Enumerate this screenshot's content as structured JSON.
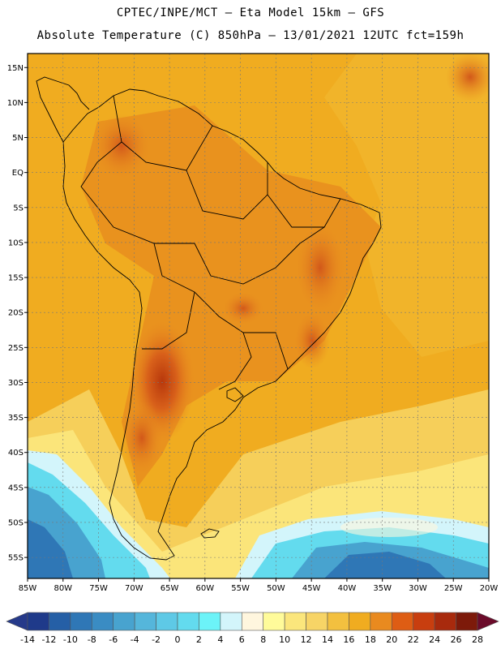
{
  "header": {
    "line1": "CPTEC/INPE/MCT –  Eta Model 15km – GFS",
    "line2": "Absolute Temperature (C) 850hPa – 13/01/2021 12UTC fct=159h"
  },
  "map": {
    "lon_range": [
      -85,
      -20
    ],
    "lat_range": [
      -58,
      17
    ],
    "lat_ticks": [
      {
        "value": 15,
        "label": "15N"
      },
      {
        "value": 10,
        "label": "10N"
      },
      {
        "value": 5,
        "label": "5N"
      },
      {
        "value": 0,
        "label": "EQ"
      },
      {
        "value": -5,
        "label": "5S"
      },
      {
        "value": -10,
        "label": "10S"
      },
      {
        "value": -15,
        "label": "15S"
      },
      {
        "value": -20,
        "label": "20S"
      },
      {
        "value": -25,
        "label": "25S"
      },
      {
        "value": -30,
        "label": "30S"
      },
      {
        "value": -35,
        "label": "35S"
      },
      {
        "value": -40,
        "label": "40S"
      },
      {
        "value": -45,
        "label": "45S"
      },
      {
        "value": -50,
        "label": "50S"
      },
      {
        "value": -55,
        "label": "55S"
      }
    ],
    "lon_ticks": [
      {
        "value": -85,
        "label": "85W"
      },
      {
        "value": -80,
        "label": "80W"
      },
      {
        "value": -75,
        "label": "75W"
      },
      {
        "value": -70,
        "label": "70W"
      },
      {
        "value": -65,
        "label": "65W"
      },
      {
        "value": -60,
        "label": "60W"
      },
      {
        "value": -55,
        "label": "55W"
      },
      {
        "value": -50,
        "label": "50W"
      },
      {
        "value": -45,
        "label": "45W"
      },
      {
        "value": -40,
        "label": "40W"
      },
      {
        "value": -35,
        "label": "35W"
      },
      {
        "value": -30,
        "label": "30W"
      },
      {
        "value": -25,
        "label": "25W"
      },
      {
        "value": -20,
        "label": "20W"
      }
    ]
  },
  "colorbar": {
    "labels": [
      "-14",
      "-12",
      "-10",
      "-8",
      "-6",
      "-4",
      "-2",
      "0",
      "2",
      "4",
      "6",
      "8",
      "10",
      "12",
      "14",
      "16",
      "18",
      "20",
      "22",
      "24",
      "26",
      "28"
    ],
    "colors": [
      "#1f3a8a",
      "#255fa6",
      "#2f77b6",
      "#3a8cc3",
      "#48a3cf",
      "#55b6db",
      "#5ec9e6",
      "#63dbee",
      "#6cf3f8",
      "#d3f5fb",
      "#fff6de",
      "#fffb9a",
      "#fbe67c",
      "#f7d466",
      "#f3c03f",
      "#f0ac20",
      "#e98a1f",
      "#de5d14",
      "#c83e0f",
      "#a82a0d",
      "#7d1a0a"
    ],
    "under_color": "#263a8a",
    "over_color": "#6b0b2a"
  }
}
